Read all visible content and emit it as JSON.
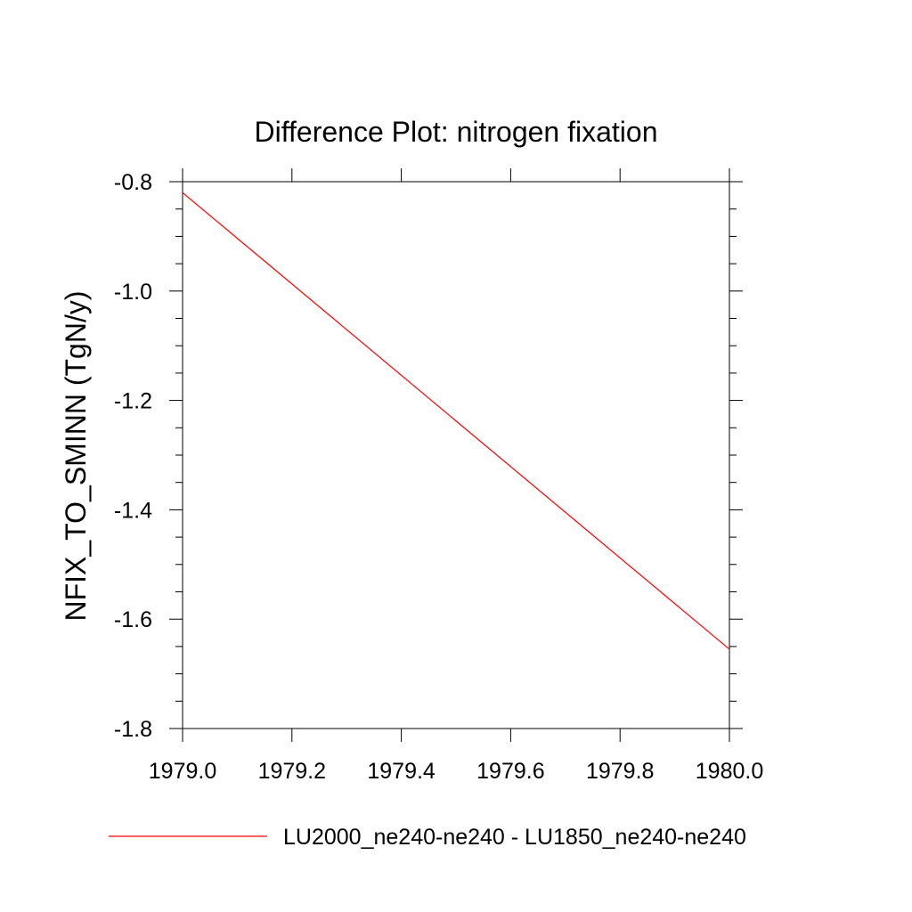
{
  "chart_data": {
    "type": "line",
    "title": "Difference Plot: nitrogen fixation",
    "xlabel": "",
    "ylabel": "NFIX_TO_SMINN  (TgN/y)",
    "xlim": [
      1979.0,
      1980.0
    ],
    "ylim": [
      -1.8,
      -0.8
    ],
    "xticks": [
      1979.0,
      1979.2,
      1979.4,
      1979.6,
      1979.8,
      1980.0
    ],
    "xtick_labels": [
      "1979.0",
      "1979.2",
      "1979.4",
      "1979.6",
      "1979.8",
      "1980.0"
    ],
    "yticks": [
      -0.8,
      -1.0,
      -1.2,
      -1.4,
      -1.6,
      -1.8
    ],
    "ytick_labels": [
      "-0.8",
      "-1.0",
      "-1.2",
      "-1.4",
      "-1.6",
      "-1.8"
    ],
    "grid": false,
    "legend_position": "bottom",
    "series": [
      {
        "name": "LU2000_ne240-ne240 - LU1850_ne240-ne240",
        "color": "#ff0000",
        "x": [
          1979.0,
          1980.0
        ],
        "y": [
          -0.82,
          -1.655
        ]
      }
    ]
  }
}
